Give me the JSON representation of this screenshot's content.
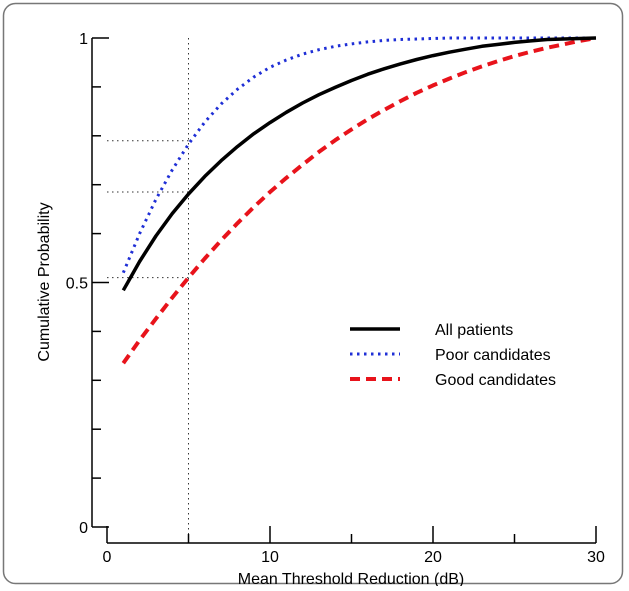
{
  "chart_data": {
    "type": "line",
    "xlabel": "Mean Threshold Reduction (dB)",
    "ylabel": "Cumulative Probability",
    "xlim": [
      0,
      30
    ],
    "ylim": [
      0,
      1
    ],
    "x_ticks": [
      0,
      10,
      20,
      30
    ],
    "y_ticks": [
      0,
      0.5,
      1
    ],
    "x_tick_labels": [
      "0",
      "10",
      "20",
      "30"
    ],
    "y_tick_labels": [
      "0",
      "0.5",
      "1"
    ],
    "grid": false,
    "legend_position": "center-right",
    "reference_lines": {
      "x": 5,
      "y": [
        0.51,
        0.685,
        0.79
      ]
    },
    "series": [
      {
        "name": "All patients",
        "color": "#000000",
        "style": "solid",
        "x": [
          1,
          2,
          3,
          4,
          5,
          6,
          7,
          8,
          9,
          10,
          11,
          12,
          13,
          14,
          15,
          16,
          17,
          18,
          19,
          20,
          21,
          22,
          23,
          24,
          25,
          26,
          27,
          28,
          29,
          30
        ],
        "y": [
          0.484,
          0.543,
          0.595,
          0.641,
          0.681,
          0.717,
          0.749,
          0.778,
          0.804,
          0.827,
          0.848,
          0.867,
          0.884,
          0.899,
          0.913,
          0.926,
          0.937,
          0.947,
          0.956,
          0.964,
          0.971,
          0.977,
          0.983,
          0.987,
          0.991,
          0.994,
          0.997,
          0.998,
          0.999,
          1.0
        ]
      },
      {
        "name": "Poor candidates",
        "color": "#1f2fd6",
        "style": "dotted",
        "x": [
          1,
          2,
          3,
          4,
          5,
          6,
          7,
          8,
          9,
          10,
          11,
          12,
          13,
          14,
          15,
          16,
          17,
          18,
          19,
          20,
          21,
          22,
          23,
          24,
          25,
          26,
          27,
          28,
          29,
          30
        ],
        "y": [
          0.52,
          0.6,
          0.67,
          0.73,
          0.783,
          0.828,
          0.865,
          0.895,
          0.92,
          0.94,
          0.955,
          0.967,
          0.976,
          0.983,
          0.988,
          0.992,
          0.995,
          0.997,
          0.998,
          0.999,
          1.0,
          1.0,
          1.0,
          1.0,
          1.0,
          1.0,
          1.0,
          1.0,
          1.0,
          1.0
        ]
      },
      {
        "name": "Good candidates",
        "color": "#e8131b",
        "style": "dashed",
        "x": [
          1,
          2,
          3,
          4,
          5,
          6,
          7,
          8,
          9,
          10,
          11,
          12,
          13,
          14,
          15,
          16,
          17,
          18,
          19,
          20,
          21,
          22,
          23,
          24,
          25,
          26,
          27,
          28,
          29,
          30
        ],
        "y": [
          0.335,
          0.382,
          0.426,
          0.469,
          0.51,
          0.549,
          0.586,
          0.621,
          0.654,
          0.685,
          0.714,
          0.741,
          0.767,
          0.791,
          0.813,
          0.834,
          0.853,
          0.871,
          0.888,
          0.903,
          0.917,
          0.93,
          0.942,
          0.953,
          0.963,
          0.972,
          0.98,
          0.987,
          0.994,
          1.0
        ]
      }
    ]
  }
}
